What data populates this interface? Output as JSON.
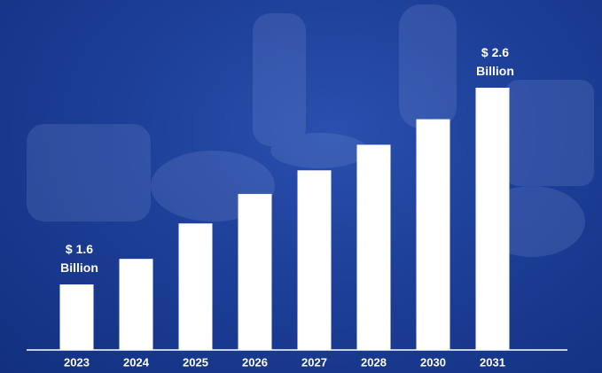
{
  "chart_data": {
    "type": "bar",
    "categories": [
      "2023",
      "2024",
      "2025",
      "2026",
      "2027",
      "2028",
      "2030",
      "2031"
    ],
    "values": [
      1.6,
      1.73,
      1.91,
      2.06,
      2.18,
      2.31,
      2.44,
      2.6
    ],
    "value_labels": [
      "$ 1.6 Billion",
      null,
      null,
      null,
      null,
      null,
      null,
      "$ 2.6 Billion"
    ],
    "color": "#ffffff",
    "ylim": [
      1.267,
      2.6
    ]
  }
}
